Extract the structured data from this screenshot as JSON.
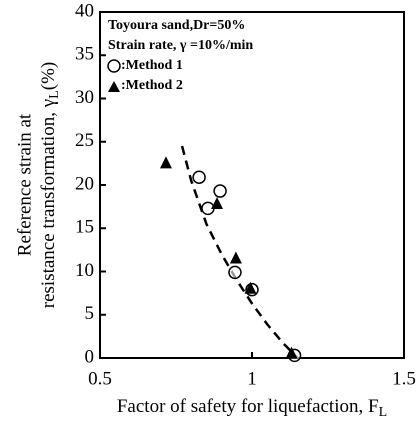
{
  "chart_data": {
    "type": "scatter",
    "legend_lines": [
      "Toyoura sand,Dr=50%",
      "Strain rate, γ =10%/min"
    ],
    "xlabel": {
      "text": "Factor of safety for liquefaction, F",
      "sub": "L"
    },
    "ylabel": {
      "line1": "Reference strain at",
      "line2": "resistance transformation, γ",
      "sub": "L",
      "tail": "(%)"
    },
    "xlim": [
      0.5,
      1.5
    ],
    "xticks": [
      0.5,
      1,
      1.5
    ],
    "ylim": [
      0,
      40
    ],
    "yticks": [
      0,
      5,
      10,
      15,
      20,
      25,
      30,
      35,
      40
    ],
    "legend": "upper left",
    "series": [
      {
        "name": ":Method 1",
        "marker": "circle",
        "color": "#000000",
        "x": [
          0.826,
          0.855,
          0.895,
          0.944,
          1.0,
          1.14
        ],
        "values": [
          20.9,
          17.3,
          19.3,
          9.9,
          7.9,
          0.3
        ]
      },
      {
        "name": ":Method 2",
        "marker": "triangle",
        "color": "#000000",
        "x": [
          0.717,
          0.885,
          0.947,
          0.995,
          1.13
        ],
        "values": [
          22.5,
          17.8,
          11.5,
          8.0,
          0.5
        ]
      }
    ],
    "curve": {
      "x": [
        0.77,
        0.8,
        0.85,
        0.9,
        0.95,
        1.0,
        1.05,
        1.1,
        1.15
      ],
      "values": [
        24.5,
        20.5,
        15.5,
        12.0,
        9.0,
        6.3,
        3.9,
        1.8,
        0.0
      ]
    }
  }
}
